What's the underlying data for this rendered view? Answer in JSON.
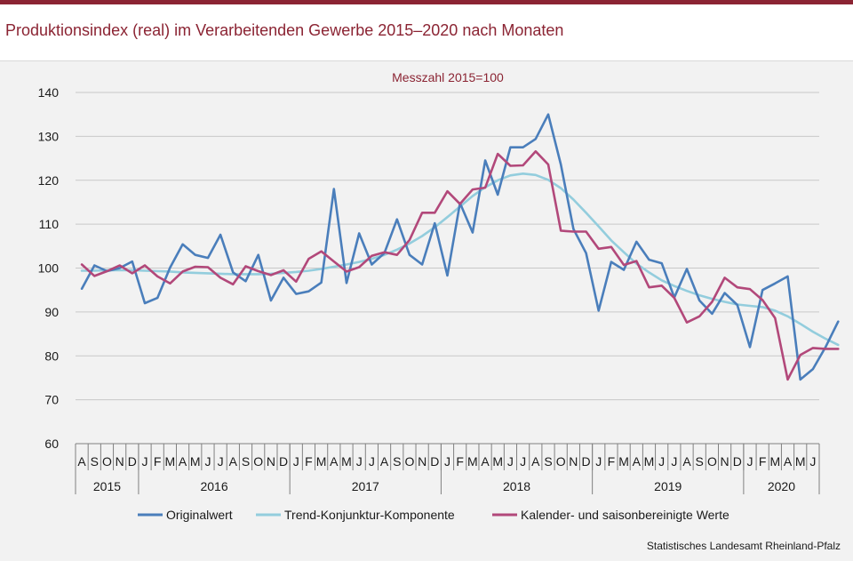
{
  "header": {
    "title": "Produktionsindex (real) im Verarbeitenden Gewerbe 2015–2020 nach Monaten"
  },
  "footer": {
    "source": "Statistisches Landesamt Rheinland-Pfalz"
  },
  "colors": {
    "brand": "#8b2433",
    "original": "#4a7ebb",
    "trend": "#93cddd",
    "adjusted": "#b2487a"
  },
  "chart_data": {
    "type": "line",
    "subtitle": "Messzahl 2015=100",
    "ylim": [
      60,
      140
    ],
    "yticks": [
      60,
      70,
      80,
      90,
      100,
      110,
      120,
      130,
      140
    ],
    "grid": true,
    "legend_position": "bottom",
    "month_labels": [
      "A",
      "S",
      "O",
      "N",
      "D",
      "J",
      "F",
      "M",
      "A",
      "M",
      "J",
      "J",
      "A",
      "S",
      "O",
      "N",
      "D",
      "J",
      "F",
      "M",
      "A",
      "M",
      "J",
      "J",
      "A",
      "S",
      "O",
      "N",
      "D",
      "J",
      "F",
      "M",
      "A",
      "M",
      "J",
      "J",
      "A",
      "S",
      "O",
      "N",
      "D",
      "J",
      "F",
      "M",
      "A",
      "M",
      "J",
      "J",
      "A",
      "S",
      "O",
      "N",
      "D",
      "J",
      "F",
      "M",
      "A",
      "M",
      "J"
    ],
    "years": [
      {
        "label": "2015",
        "months": 5
      },
      {
        "label": "2016",
        "months": 12
      },
      {
        "label": "2017",
        "months": 12
      },
      {
        "label": "2018",
        "months": 12
      },
      {
        "label": "2019",
        "months": 12
      },
      {
        "label": "2020",
        "months": 6
      }
    ],
    "series": [
      {
        "name": "Originalwert",
        "values": [
          95.3,
          100.6,
          99.3,
          100.0,
          101.5,
          92.0,
          93.2,
          100.1,
          105.4,
          103.0,
          102.3,
          107.6,
          99.0,
          97.0,
          103.0,
          92.6,
          97.8,
          94.1,
          94.7,
          96.7,
          118.0,
          96.6,
          107.9,
          100.8,
          103.4,
          111.1,
          103.0,
          100.8,
          110.2,
          98.3,
          114.8,
          108.1,
          124.5,
          116.7,
          127.5,
          127.5,
          129.4,
          135.0,
          123.6,
          108.9,
          103.4,
          90.3,
          101.4,
          99.6,
          106.0,
          101.9,
          101.1,
          93.3,
          99.8,
          92.6,
          89.6,
          94.3,
          91.6,
          82.0,
          95.0,
          96.5,
          98.1,
          74.6,
          77.0,
          82.0,
          87.8
        ]
      },
      {
        "name": "Trend-Konjunktur-Komponente",
        "values": [
          99.4,
          99.4,
          99.5,
          99.5,
          99.5,
          99.4,
          99.3,
          99.2,
          99.0,
          98.9,
          98.8,
          98.7,
          98.6,
          98.6,
          98.6,
          98.7,
          98.9,
          99.1,
          99.4,
          99.8,
          100.3,
          100.8,
          101.4,
          102.1,
          103.0,
          104.2,
          105.6,
          107.3,
          109.3,
          111.6,
          114.0,
          116.4,
          118.4,
          120.0,
          121.1,
          121.5,
          121.2,
          120.1,
          118.2,
          115.6,
          112.6,
          109.5,
          106.3,
          103.6,
          101.0,
          99.0,
          97.2,
          95.9,
          94.8,
          93.8,
          93.0,
          92.3,
          91.7,
          91.4,
          91.1,
          90.3,
          89.0,
          87.3,
          85.5,
          83.9,
          82.5
        ]
      },
      {
        "name": "Kalender- und saisonbereinigte Werte",
        "values": [
          100.8,
          98.2,
          99.3,
          100.6,
          98.8,
          100.6,
          98.1,
          96.5,
          99.2,
          100.3,
          100.2,
          97.8,
          96.3,
          100.4,
          99.3,
          98.4,
          99.5,
          96.9,
          102.1,
          103.8,
          101.5,
          99.2,
          100.2,
          102.8,
          103.6,
          103.0,
          106.4,
          112.6,
          112.6,
          117.5,
          114.6,
          117.9,
          118.3,
          126.0,
          123.3,
          123.4,
          126.6,
          123.6,
          108.5,
          108.3,
          108.3,
          104.4,
          104.8,
          100.7,
          101.6,
          95.6,
          96.0,
          93.2,
          87.6,
          89.0,
          92.3,
          97.8,
          95.6,
          95.2,
          92.7,
          88.6,
          74.6,
          80.2,
          81.8,
          81.6,
          81.6
        ]
      }
    ]
  }
}
